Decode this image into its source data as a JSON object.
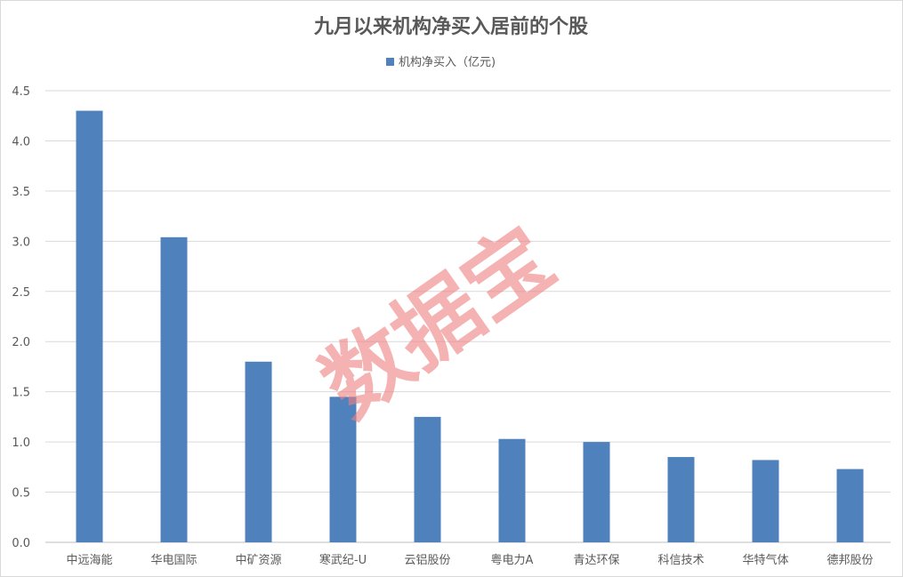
{
  "chart_data": {
    "type": "bar",
    "title": "九月以来机构净买入居前的个股",
    "legend": "机构净买入（亿元)",
    "legend_position": "top-center",
    "xlabel": "",
    "ylabel": "",
    "categories": [
      "中远海能",
      "华电国际",
      "中矿资源",
      "寒武纪-U",
      "云铝股份",
      "粤电力A",
      "青达环保",
      "科信技术",
      "华特气体",
      "德邦股份"
    ],
    "series": [
      {
        "name": "机构净买入（亿元)",
        "values": [
          4.3,
          3.04,
          1.8,
          1.45,
          1.25,
          1.03,
          1.0,
          0.85,
          0.82,
          0.73
        ],
        "color": "#4f81bd"
      }
    ],
    "ylim": [
      0,
      4.5
    ],
    "yticks": [
      "0.0",
      "0.5",
      "1.0",
      "1.5",
      "2.0",
      "2.5",
      "3.0",
      "3.5",
      "4.0",
      "4.5"
    ],
    "grid": true
  },
  "watermark": "数据宝",
  "colors": {
    "bar": "#4f81bd",
    "grid": "#d9d9d9",
    "text": "#595959",
    "watermark": "#f08080"
  }
}
